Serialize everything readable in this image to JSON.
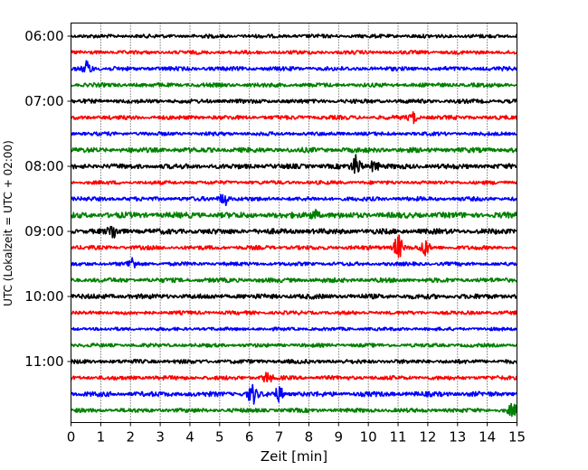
{
  "chart_data": {
    "type": "line",
    "title": "",
    "xlabel": "Zeit  [min]",
    "ylabel": "UTC (Lokalzeit = UTC + 02:00)",
    "xlim": [
      0,
      15
    ],
    "x_ticks": [
      "0",
      "1",
      "2",
      "3",
      "4",
      "5",
      "6",
      "7",
      "8",
      "9",
      "10",
      "11",
      "12",
      "13",
      "14",
      "15"
    ],
    "y_tick_labels": [
      "06:00",
      "07:00",
      "08:00",
      "09:00",
      "10:00",
      "11:00"
    ],
    "grid": "vertical dotted lines at each minute",
    "legend": "none",
    "trace_interval_min": 15,
    "colors": [
      "#000000",
      "#ff0000",
      "#0000ff",
      "#008000"
    ],
    "traces": [
      {
        "start": "06:00",
        "color": "#000000",
        "amplitude": 0.09,
        "events": []
      },
      {
        "start": "06:15",
        "color": "#ff0000",
        "amplitude": 0.09,
        "events": []
      },
      {
        "start": "06:30",
        "color": "#0000ff",
        "amplitude": 0.1,
        "events": [
          {
            "t": 0.55,
            "amp": 0.45
          }
        ]
      },
      {
        "start": "06:45",
        "color": "#008000",
        "amplitude": 0.1,
        "events": []
      },
      {
        "start": "07:00",
        "color": "#000000",
        "amplitude": 0.1,
        "events": []
      },
      {
        "start": "07:15",
        "color": "#ff0000",
        "amplitude": 0.1,
        "events": [
          {
            "t": 11.5,
            "amp": 0.3
          }
        ]
      },
      {
        "start": "07:30",
        "color": "#0000ff",
        "amplitude": 0.09,
        "events": []
      },
      {
        "start": "07:45",
        "color": "#008000",
        "amplitude": 0.12,
        "events": []
      },
      {
        "start": "08:00",
        "color": "#000000",
        "amplitude": 0.12,
        "events": [
          {
            "t": 9.6,
            "amp": 0.6
          },
          {
            "t": 10.2,
            "amp": 0.35
          }
        ]
      },
      {
        "start": "08:15",
        "color": "#ff0000",
        "amplitude": 0.09,
        "events": []
      },
      {
        "start": "08:30",
        "color": "#0000ff",
        "amplitude": 0.1,
        "events": [
          {
            "t": 5.15,
            "amp": 0.4
          }
        ]
      },
      {
        "start": "08:45",
        "color": "#008000",
        "amplitude": 0.14,
        "events": [
          {
            "t": 8.2,
            "amp": 0.3
          }
        ]
      },
      {
        "start": "09:00",
        "color": "#000000",
        "amplitude": 0.13,
        "events": [
          {
            "t": 1.4,
            "amp": 0.4
          }
        ]
      },
      {
        "start": "09:15",
        "color": "#ff0000",
        "amplitude": 0.1,
        "events": [
          {
            "t": 11.0,
            "amp": 0.75
          },
          {
            "t": 11.9,
            "amp": 0.45
          }
        ]
      },
      {
        "start": "09:30",
        "color": "#0000ff",
        "amplitude": 0.09,
        "events": [
          {
            "t": 2.05,
            "amp": 0.35
          }
        ]
      },
      {
        "start": "09:45",
        "color": "#008000",
        "amplitude": 0.11,
        "events": []
      },
      {
        "start": "10:00",
        "color": "#000000",
        "amplitude": 0.12,
        "events": []
      },
      {
        "start": "10:15",
        "color": "#ff0000",
        "amplitude": 0.09,
        "events": []
      },
      {
        "start": "10:30",
        "color": "#0000ff",
        "amplitude": 0.08,
        "events": []
      },
      {
        "start": "10:45",
        "color": "#008000",
        "amplitude": 0.09,
        "events": []
      },
      {
        "start": "11:00",
        "color": "#000000",
        "amplitude": 0.1,
        "events": []
      },
      {
        "start": "11:15",
        "color": "#ff0000",
        "amplitude": 0.1,
        "events": [
          {
            "t": 6.6,
            "amp": 0.3
          }
        ]
      },
      {
        "start": "11:30",
        "color": "#0000ff",
        "amplitude": 0.12,
        "events": [
          {
            "t": 6.1,
            "amp": 0.55
          },
          {
            "t": 7.0,
            "amp": 0.4
          }
        ]
      },
      {
        "start": "11:45",
        "color": "#008000",
        "amplitude": 0.1,
        "events": [
          {
            "t": 14.85,
            "amp": 0.35
          }
        ]
      }
    ]
  }
}
